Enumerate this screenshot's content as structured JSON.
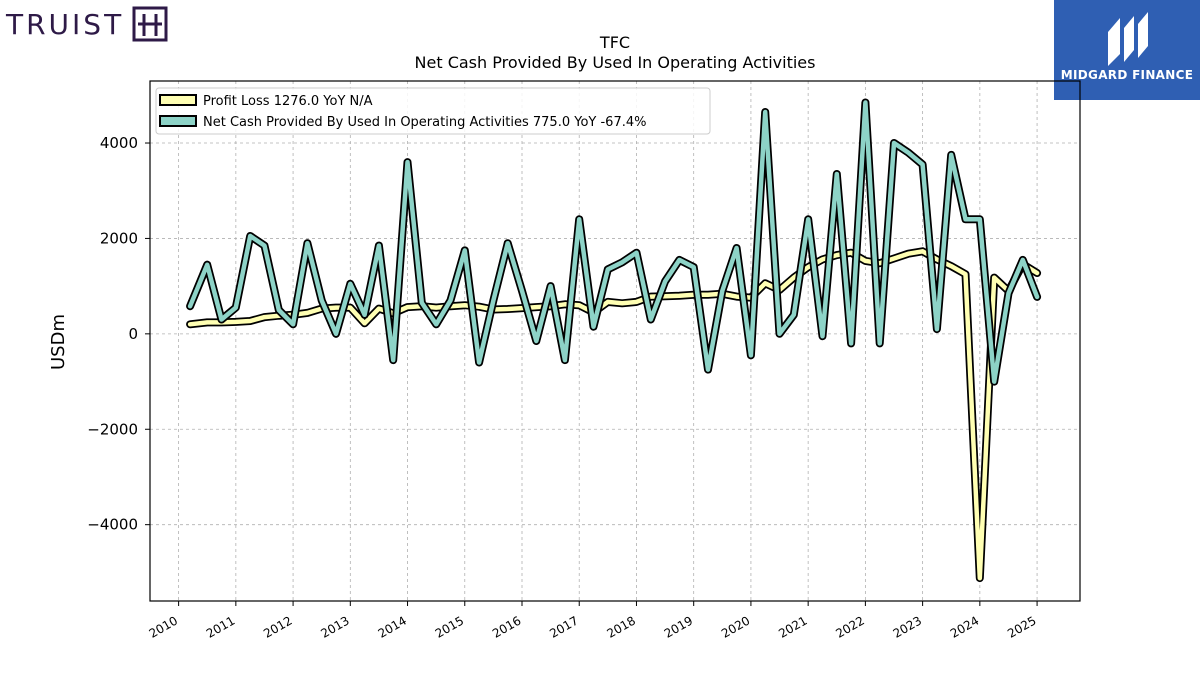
{
  "brand_left": "TRUIST",
  "brand_right": "MIDGARD FINANCE",
  "chart_data": {
    "type": "line",
    "title": "TFC",
    "subtitle": "Net Cash Provided By Used In Operating Activities",
    "ylabel": "USDm",
    "xlim": [
      2009.5,
      2025.75
    ],
    "ylim": [
      -5600,
      5300
    ],
    "yticks": [
      -4000,
      -2000,
      0,
      2000,
      4000
    ],
    "xticks": [
      2010,
      2011,
      2012,
      2013,
      2014,
      2015,
      2016,
      2017,
      2018,
      2019,
      2020,
      2021,
      2022,
      2023,
      2024,
      2025
    ],
    "grid": true,
    "legend_position": "top-left",
    "series": [
      {
        "name": "Profit Loss",
        "legend_label": "Profit Loss  1276.0 YoY N/A",
        "color": "#ffffb3",
        "points": [
          [
            2010.2,
            200
          ],
          [
            2010.5,
            240
          ],
          [
            2010.75,
            240
          ],
          [
            2011.0,
            250
          ],
          [
            2011.25,
            270
          ],
          [
            2011.5,
            350
          ],
          [
            2011.75,
            380
          ],
          [
            2012.0,
            400
          ],
          [
            2012.25,
            440
          ],
          [
            2012.5,
            530
          ],
          [
            2012.75,
            550
          ],
          [
            2013.0,
            550
          ],
          [
            2013.25,
            220
          ],
          [
            2013.5,
            530
          ],
          [
            2013.75,
            430
          ],
          [
            2014.0,
            560
          ],
          [
            2014.25,
            580
          ],
          [
            2014.5,
            550
          ],
          [
            2014.75,
            580
          ],
          [
            2015.0,
            600
          ],
          [
            2015.25,
            570
          ],
          [
            2015.5,
            510
          ],
          [
            2015.75,
            520
          ],
          [
            2016.0,
            540
          ],
          [
            2016.25,
            560
          ],
          [
            2016.5,
            580
          ],
          [
            2016.75,
            620
          ],
          [
            2017.0,
            600
          ],
          [
            2017.25,
            450
          ],
          [
            2017.5,
            670
          ],
          [
            2017.75,
            640
          ],
          [
            2018.0,
            670
          ],
          [
            2018.25,
            780
          ],
          [
            2018.5,
            790
          ],
          [
            2018.75,
            800
          ],
          [
            2019.0,
            820
          ],
          [
            2019.25,
            820
          ],
          [
            2019.5,
            840
          ],
          [
            2019.75,
            780
          ],
          [
            2020.0,
            760
          ],
          [
            2020.25,
            1060
          ],
          [
            2020.5,
            920
          ],
          [
            2020.75,
            1180
          ],
          [
            2021.0,
            1400
          ],
          [
            2021.25,
            1560
          ],
          [
            2021.5,
            1650
          ],
          [
            2021.75,
            1700
          ],
          [
            2022.0,
            1530
          ],
          [
            2022.25,
            1480
          ],
          [
            2022.5,
            1580
          ],
          [
            2022.75,
            1680
          ],
          [
            2023.0,
            1730
          ],
          [
            2023.25,
            1560
          ],
          [
            2023.5,
            1420
          ],
          [
            2023.75,
            1250
          ],
          [
            2024.0,
            -5120
          ],
          [
            2024.25,
            1180
          ],
          [
            2024.5,
            900
          ],
          [
            2024.75,
            1460
          ],
          [
            2025.0,
            1276
          ]
        ]
      },
      {
        "name": "Net Cash Provided By Used In Operating Activities",
        "legend_label": "Net Cash Provided By Used In Operating Activities  775.0 YoY -67.4%",
        "color": "#8dd3c7",
        "points": [
          [
            2010.2,
            580
          ],
          [
            2010.5,
            1450
          ],
          [
            2010.75,
            300
          ],
          [
            2011.0,
            550
          ],
          [
            2011.25,
            2050
          ],
          [
            2011.5,
            1850
          ],
          [
            2011.75,
            500
          ],
          [
            2012.0,
            200
          ],
          [
            2012.25,
            1900
          ],
          [
            2012.5,
            700
          ],
          [
            2012.75,
            0
          ],
          [
            2013.0,
            1050
          ],
          [
            2013.25,
            400
          ],
          [
            2013.5,
            1850
          ],
          [
            2013.75,
            -550
          ],
          [
            2014.0,
            3600
          ],
          [
            2014.25,
            650
          ],
          [
            2014.5,
            200
          ],
          [
            2014.75,
            700
          ],
          [
            2015.0,
            1750
          ],
          [
            2015.25,
            -600
          ],
          [
            2015.5,
            700
          ],
          [
            2015.75,
            1900
          ],
          [
            2016.0,
            900
          ],
          [
            2016.25,
            -150
          ],
          [
            2016.5,
            1000
          ],
          [
            2016.75,
            -550
          ],
          [
            2017.0,
            2400
          ],
          [
            2017.25,
            150
          ],
          [
            2017.5,
            1350
          ],
          [
            2017.75,
            1500
          ],
          [
            2018.0,
            1700
          ],
          [
            2018.25,
            300
          ],
          [
            2018.5,
            1100
          ],
          [
            2018.75,
            1550
          ],
          [
            2019.0,
            1400
          ],
          [
            2019.25,
            -750
          ],
          [
            2019.5,
            900
          ],
          [
            2019.75,
            1800
          ],
          [
            2020.0,
            -450
          ],
          [
            2020.25,
            4650
          ],
          [
            2020.5,
            0
          ],
          [
            2020.75,
            400
          ],
          [
            2021.0,
            2400
          ],
          [
            2021.25,
            -50
          ],
          [
            2021.5,
            3350
          ],
          [
            2021.75,
            -200
          ],
          [
            2022.0,
            4850
          ],
          [
            2022.25,
            -200
          ],
          [
            2022.5,
            4000
          ],
          [
            2022.75,
            3800
          ],
          [
            2023.0,
            3550
          ],
          [
            2023.25,
            100
          ],
          [
            2023.5,
            3750
          ],
          [
            2023.75,
            2400
          ],
          [
            2024.0,
            2400
          ],
          [
            2024.25,
            -1000
          ],
          [
            2024.5,
            850
          ],
          [
            2024.75,
            1550
          ],
          [
            2025.0,
            775
          ]
        ]
      }
    ]
  }
}
